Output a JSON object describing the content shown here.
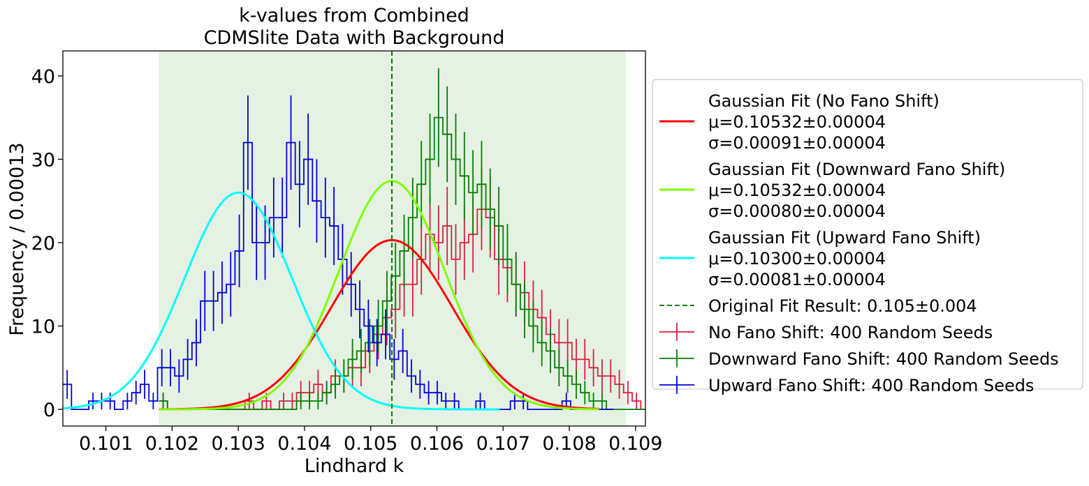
{
  "chart_data": {
    "type": "histogram",
    "title_line1": "k-values from Combined",
    "title_line2": "CDMSlite Data with Background",
    "xlabel": "Lindhard k",
    "ylabel": "Frequency / 0.00013",
    "xlim": [
      0.10035,
      0.10915
    ],
    "ylim": [
      -2,
      43
    ],
    "xticks": [
      "0.101",
      "0.102",
      "0.103",
      "0.104",
      "0.105",
      "0.106",
      "0.107",
      "0.108",
      "0.109"
    ],
    "xtick_values": [
      0.101,
      0.102,
      0.103,
      0.104,
      0.105,
      0.106,
      0.107,
      0.108,
      0.109
    ],
    "yticks": [
      "0",
      "10",
      "20",
      "30",
      "40"
    ],
    "ytick_values": [
      0,
      10,
      20,
      30,
      40
    ],
    "shaded_region": [
      0.1018,
      0.10885
    ],
    "shaded_color": "#e5f1e2",
    "vline": {
      "x": 0.10532,
      "color": "#008000"
    },
    "bin_width": 0.00013,
    "histograms": [
      {
        "name": "No Fano Shift: 400 Random Seeds",
        "color": "#d62040",
        "x_start": 0.1018,
        "values": [
          1,
          0,
          0,
          0,
          0,
          0,
          0,
          0,
          0,
          0,
          1,
          0,
          1,
          0,
          1,
          1,
          2,
          2,
          3,
          2,
          4,
          4,
          5,
          5,
          7,
          9,
          11,
          12,
          15,
          15,
          18,
          21,
          20,
          22,
          18,
          20,
          21,
          24,
          23,
          18,
          17,
          15,
          14,
          12,
          11,
          9,
          8,
          8,
          6,
          6,
          5,
          4,
          4,
          3,
          2,
          1,
          0,
          0,
          0,
          0,
          0
        ]
      },
      {
        "name": "Downward Fano Shift: 400 Random Seeds",
        "color": "#008000",
        "x_start": 0.1018,
        "values": [
          1,
          0,
          0,
          0,
          0,
          0,
          0,
          0,
          0,
          0,
          0,
          0,
          0,
          0,
          0,
          0,
          1,
          1,
          1,
          2,
          3,
          4,
          6,
          7,
          8,
          10,
          13,
          16,
          19,
          23,
          27,
          30,
          35,
          33,
          30,
          28,
          26,
          27,
          24,
          22,
          18,
          15,
          12,
          10,
          8,
          7,
          5,
          4,
          3,
          2,
          1,
          1,
          0,
          0,
          0,
          0,
          0,
          0,
          0,
          0,
          0,
          1
        ]
      },
      {
        "name": "Upward Fano Shift: 400 Random Seeds",
        "color": "#0000dd",
        "x_start": 0.10035,
        "values": [
          3,
          0,
          0,
          1,
          1,
          1,
          0,
          1,
          2,
          3,
          1,
          5,
          5,
          4,
          6,
          8,
          13,
          13,
          14,
          15,
          19,
          32,
          20,
          20,
          23,
          23,
          32,
          27,
          30,
          25,
          23,
          22,
          18,
          15,
          12,
          10,
          8,
          9,
          6,
          7,
          4,
          3,
          2,
          2,
          1,
          1,
          0,
          0,
          1,
          0,
          0,
          0,
          1,
          1,
          0,
          0,
          0,
          0,
          1,
          0,
          0,
          0,
          0,
          0
        ]
      }
    ],
    "fits": [
      {
        "label_line1": "Gaussian Fit (No Fano Shift)",
        "label_line2": "μ=0.10532±0.00004",
        "label_line3": "σ=0.00091±0.00004",
        "color": "#ff0000",
        "mu": 0.10532,
        "sigma": 0.00091,
        "amp": 20.3,
        "x_range": [
          0.1018,
          0.10845
        ]
      },
      {
        "label_line1": "Gaussian Fit (Downward Fano Shift)",
        "label_line2": "μ=0.10532±0.00004",
        "label_line3": "σ=0.00080±0.00004",
        "color": "#7fff00",
        "mu": 0.10532,
        "sigma": 0.0008,
        "amp": 27.4,
        "x_range": [
          0.1018,
          0.10845
        ]
      },
      {
        "label_line1": "Gaussian Fit (Upward Fano Shift)",
        "label_line2": "μ=0.10300±0.00004",
        "label_line3": "σ=0.00081±0.00004",
        "color": "#00ffff",
        "mu": 0.103,
        "sigma": 0.00081,
        "amp": 26.0,
        "x_range": [
          0.10035,
          0.10695
        ]
      }
    ],
    "legend": {
      "placement": "right-outside",
      "entries": [
        {
          "type": "line",
          "color": "#ff0000",
          "lines": [
            "Gaussian Fit (No Fano Shift)",
            "μ=0.10532±0.00004",
            "σ=0.00091±0.00004"
          ]
        },
        {
          "type": "line",
          "color": "#7fff00",
          "lines": [
            "Gaussian Fit (Downward Fano Shift)",
            "μ=0.10532±0.00004",
            "σ=0.00080±0.00004"
          ]
        },
        {
          "type": "line",
          "color": "#00ffff",
          "lines": [
            "Gaussian Fit (Upward Fano Shift)",
            "μ=0.10300±0.00004",
            "σ=0.00081±0.00004"
          ]
        },
        {
          "type": "dashed",
          "color": "#008000",
          "lines": [
            "Original Fit Result: 0.105±0.004"
          ]
        },
        {
          "type": "errorbar",
          "color": "#d62040",
          "lines": [
            "No Fano Shift: 400 Random Seeds"
          ]
        },
        {
          "type": "errorbar",
          "color": "#008000",
          "lines": [
            "Downward Fano Shift: 400 Random Seeds"
          ]
        },
        {
          "type": "errorbar",
          "color": "#0000dd",
          "lines": [
            "Upward Fano Shift: 400 Random Seeds"
          ]
        }
      ]
    }
  }
}
